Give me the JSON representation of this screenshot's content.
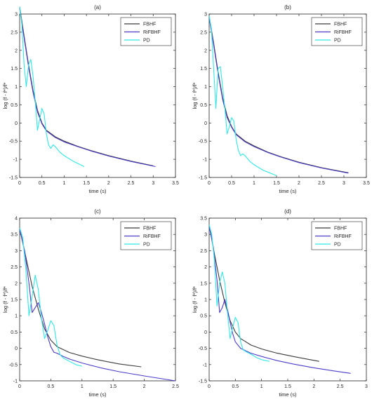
{
  "chart_data": [
    {
      "type": "line",
      "title": "(a)",
      "xlabel": "time (s)",
      "ylabel": "log (f - f*)/f*",
      "xlim": [
        0,
        3.5
      ],
      "ylim": [
        -1.5,
        3
      ],
      "xticks": [
        0,
        0.5,
        1,
        1.5,
        2,
        2.5,
        3,
        3.5
      ],
      "yticks": [
        -1.5,
        -1,
        -0.5,
        0,
        0.5,
        1,
        1.5,
        2,
        2.5,
        3
      ],
      "xtick_labels": [
        "0",
        "0.5",
        "1",
        "1.5",
        "2",
        "2.5",
        "3",
        "3.5"
      ],
      "ytick_labels": [
        "-1.5",
        "-1",
        "-0.5",
        "0",
        "0.5",
        "1",
        "1.5",
        "2",
        "2.5",
        "3"
      ],
      "legend_position": "top-right",
      "series": [
        {
          "name": "FBHF",
          "color": "#3a3a3a",
          "x": [
            0,
            0.1,
            0.2,
            0.3,
            0.4,
            0.5,
            0.6,
            0.8,
            1.0,
            1.3,
            1.6,
            2.0,
            2.5,
            3.0
          ],
          "y": [
            3.2,
            2.4,
            1.6,
            0.9,
            0.35,
            0.0,
            -0.2,
            -0.38,
            -0.5,
            -0.64,
            -0.76,
            -0.9,
            -1.05,
            -1.18
          ]
        },
        {
          "name": "RiFBHF",
          "color": "#4b3cc8",
          "x": [
            0,
            0.1,
            0.2,
            0.3,
            0.4,
            0.5,
            0.6,
            0.8,
            1.0,
            1.3,
            1.6,
            2.0,
            2.5,
            3.05
          ],
          "y": [
            3.15,
            2.35,
            1.55,
            0.85,
            0.3,
            -0.02,
            -0.22,
            -0.4,
            -0.52,
            -0.65,
            -0.77,
            -0.91,
            -1.06,
            -1.2
          ]
        },
        {
          "name": "PD",
          "color": "#33e6e6",
          "x": [
            0,
            0.05,
            0.1,
            0.15,
            0.2,
            0.25,
            0.3,
            0.35,
            0.4,
            0.45,
            0.5,
            0.55,
            0.6,
            0.65,
            0.7,
            0.75,
            0.8,
            0.9,
            1.0,
            1.2,
            1.45
          ],
          "y": [
            3.2,
            2.7,
            1.6,
            1.0,
            1.6,
            1.75,
            1.3,
            0.6,
            -0.2,
            0.1,
            0.4,
            0.25,
            -0.3,
            -0.6,
            -0.7,
            -0.6,
            -0.65,
            -0.8,
            -0.9,
            -1.05,
            -1.2
          ]
        }
      ]
    },
    {
      "type": "line",
      "title": "(b)",
      "xlabel": "time (s)",
      "ylabel": "log (f - f*)/f*",
      "xlim": [
        0,
        3.5
      ],
      "ylim": [
        -1.5,
        3
      ],
      "xticks": [
        0,
        0.5,
        1,
        1.5,
        2,
        2.5,
        3,
        3.5
      ],
      "yticks": [
        -1.5,
        -1,
        -0.5,
        0,
        0.5,
        1,
        1.5,
        2,
        2.5,
        3
      ],
      "xtick_labels": [
        "0",
        "0.5",
        "1",
        "1.5",
        "2",
        "2.5",
        "3",
        "3.5"
      ],
      "ytick_labels": [
        "-1.5",
        "-1",
        "-0.5",
        "0",
        "0.5",
        "1",
        "1.5",
        "2",
        "2.5",
        "3"
      ],
      "legend_position": "top-right",
      "series": [
        {
          "name": "FBHF",
          "color": "#3a3a3a",
          "x": [
            0,
            0.1,
            0.2,
            0.3,
            0.4,
            0.5,
            0.6,
            0.8,
            1.0,
            1.3,
            1.6,
            2.0,
            2.5,
            3.1
          ],
          "y": [
            2.95,
            2.2,
            1.4,
            0.7,
            0.2,
            -0.1,
            -0.3,
            -0.5,
            -0.63,
            -0.8,
            -0.93,
            -1.08,
            -1.23,
            -1.37
          ]
        },
        {
          "name": "RiFBHF",
          "color": "#4b3cc8",
          "x": [
            0,
            0.1,
            0.2,
            0.3,
            0.4,
            0.5,
            0.6,
            0.8,
            1.0,
            1.3,
            1.6,
            2.0,
            2.5,
            3.1
          ],
          "y": [
            2.9,
            2.15,
            1.35,
            0.65,
            0.15,
            -0.12,
            -0.32,
            -0.52,
            -0.65,
            -0.81,
            -0.94,
            -1.09,
            -1.24,
            -1.38
          ]
        },
        {
          "name": "PD",
          "color": "#33e6e6",
          "x": [
            0,
            0.05,
            0.1,
            0.15,
            0.2,
            0.25,
            0.3,
            0.35,
            0.4,
            0.45,
            0.5,
            0.55,
            0.6,
            0.65,
            0.7,
            0.75,
            0.8,
            0.9,
            1.0,
            1.2,
            1.5
          ],
          "y": [
            2.95,
            2.6,
            1.5,
            0.4,
            1.5,
            1.55,
            1.0,
            0.4,
            -0.3,
            -0.1,
            0.15,
            0.05,
            -0.45,
            -0.75,
            -0.9,
            -0.85,
            -0.9,
            -1.05,
            -1.15,
            -1.3,
            -1.45
          ]
        }
      ]
    },
    {
      "type": "line",
      "title": "(c)",
      "xlabel": "time (s)",
      "ylabel": "log (f - f*)/f*",
      "xlim": [
        0,
        2.5
      ],
      "ylim": [
        -1,
        4
      ],
      "xticks": [
        0,
        0.5,
        1,
        1.5,
        2,
        2.5
      ],
      "yticks": [
        -1,
        -0.5,
        0,
        0.5,
        1,
        1.5,
        2,
        2.5,
        3,
        3.5,
        4
      ],
      "xtick_labels": [
        "0",
        "0.5",
        "1",
        "1.5",
        "2",
        "2.5"
      ],
      "ytick_labels": [
        "-1",
        "-0.5",
        "0",
        "0.5",
        "1",
        "1.5",
        "2",
        "2.5",
        "3",
        "3.5",
        "4"
      ],
      "legend_position": "top-right",
      "series": [
        {
          "name": "FBHF",
          "color": "#3a3a3a",
          "x": [
            0,
            0.1,
            0.2,
            0.3,
            0.4,
            0.5,
            0.6,
            0.8,
            1.0,
            1.2,
            1.4,
            1.6,
            1.95
          ],
          "y": [
            3.7,
            2.8,
            1.9,
            1.2,
            0.6,
            0.25,
            0.05,
            -0.13,
            -0.24,
            -0.33,
            -0.41,
            -0.48,
            -0.57
          ]
        },
        {
          "name": "RiFBHF",
          "color": "#4b3cc8",
          "x": [
            0,
            0.08,
            0.15,
            0.2,
            0.25,
            0.3,
            0.35,
            0.4,
            0.45,
            0.5,
            0.55,
            0.6,
            0.7,
            0.8,
            1.0,
            1.3,
            1.6,
            2.0,
            2.5
          ],
          "y": [
            3.65,
            3.0,
            2.0,
            1.1,
            1.25,
            1.4,
            1.1,
            0.75,
            0.35,
            0.05,
            -0.12,
            -0.15,
            -0.25,
            -0.33,
            -0.45,
            -0.6,
            -0.72,
            -0.85,
            -1.0
          ]
        },
        {
          "name": "PD",
          "color": "#33e6e6",
          "x": [
            0,
            0.05,
            0.1,
            0.15,
            0.2,
            0.25,
            0.3,
            0.35,
            0.4,
            0.45,
            0.5,
            0.55,
            0.6,
            0.65,
            0.7,
            0.8,
            0.9,
            1.0
          ],
          "y": [
            3.7,
            3.4,
            2.4,
            1.0,
            1.6,
            2.25,
            1.8,
            0.9,
            0.3,
            0.55,
            0.85,
            0.7,
            0.1,
            -0.2,
            -0.3,
            -0.4,
            -0.5,
            -0.55
          ]
        }
      ]
    },
    {
      "type": "line",
      "title": "(d)",
      "xlabel": "time (s)",
      "ylabel": "log (f - f*)/f*",
      "xlim": [
        0,
        3
      ],
      "ylim": [
        -1.5,
        3.5
      ],
      "xticks": [
        0,
        0.5,
        1,
        1.5,
        2,
        2.5,
        3
      ],
      "yticks": [
        -1.5,
        -1,
        -0.5,
        0,
        0.5,
        1,
        1.5,
        2,
        2.5,
        3,
        3.5
      ],
      "xtick_labels": [
        "0",
        "0.5",
        "1",
        "1.5",
        "2",
        "2.5",
        "3"
      ],
      "ytick_labels": [
        "-1.5",
        "-1",
        "-0.5",
        "0",
        "0.5",
        "1",
        "1.5",
        "2",
        "2.5",
        "3",
        "3.5"
      ],
      "legend_position": "top-right",
      "series": [
        {
          "name": "FBHF",
          "color": "#3a3a3a",
          "x": [
            0,
            0.1,
            0.2,
            0.3,
            0.4,
            0.5,
            0.6,
            0.8,
            1.0,
            1.3,
            1.6,
            1.9,
            2.1
          ],
          "y": [
            3.3,
            2.4,
            1.6,
            0.9,
            0.35,
            0.0,
            -0.2,
            -0.4,
            -0.52,
            -0.65,
            -0.75,
            -0.84,
            -0.9
          ]
        },
        {
          "name": "RiFBHF",
          "color": "#4b3cc8",
          "x": [
            0,
            0.08,
            0.15,
            0.2,
            0.25,
            0.3,
            0.35,
            0.4,
            0.45,
            0.5,
            0.6,
            0.7,
            0.8,
            1.0,
            1.3,
            1.6,
            2.0,
            2.4,
            2.7
          ],
          "y": [
            3.25,
            2.6,
            1.6,
            0.6,
            0.75,
            1.0,
            0.7,
            0.3,
            -0.05,
            -0.3,
            -0.5,
            -0.58,
            -0.65,
            -0.75,
            -0.88,
            -0.98,
            -1.1,
            -1.2,
            -1.27
          ]
        },
        {
          "name": "PD",
          "color": "#33e6e6",
          "x": [
            0,
            0.05,
            0.1,
            0.15,
            0.2,
            0.25,
            0.3,
            0.35,
            0.4,
            0.45,
            0.5,
            0.55,
            0.6,
            0.65,
            0.7,
            0.8,
            0.9,
            1.0,
            1.15
          ],
          "y": [
            3.3,
            3.0,
            2.2,
            0.8,
            1.5,
            1.85,
            1.5,
            0.6,
            -0.2,
            0.15,
            0.45,
            0.3,
            -0.3,
            -0.55,
            -0.6,
            -0.68,
            -0.78,
            -0.85,
            -0.9
          ]
        }
      ]
    }
  ]
}
